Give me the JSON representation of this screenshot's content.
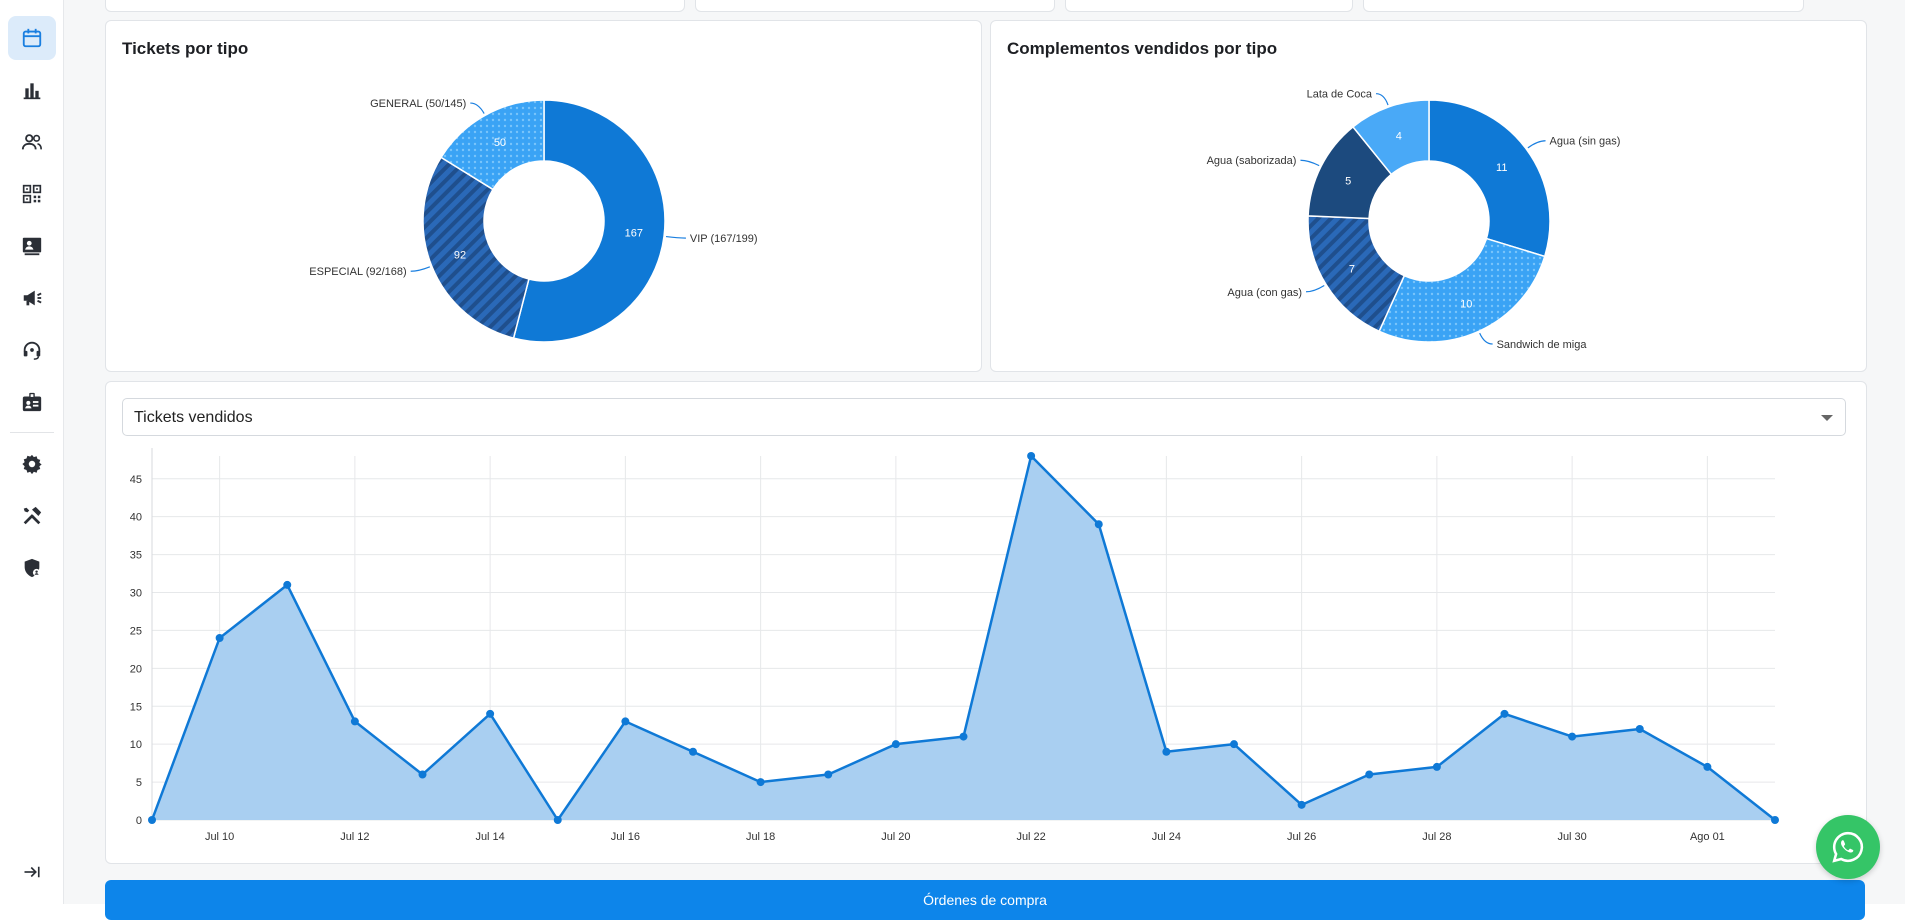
{
  "sidebar": {
    "items": [
      {
        "name": "calendar-icon",
        "active": true
      },
      {
        "name": "bar-chart-icon"
      },
      {
        "name": "users-icon"
      },
      {
        "name": "qr-code-icon"
      },
      {
        "name": "contact-card-icon"
      },
      {
        "name": "megaphone-icon"
      },
      {
        "name": "support-headset-icon"
      },
      {
        "name": "badge-icon"
      },
      {
        "name": "gear-icon"
      },
      {
        "name": "tools-icon"
      },
      {
        "name": "shield-user-icon"
      }
    ],
    "collapse_icon": "collapse-arrow-icon"
  },
  "tickets_card": {
    "title": "Tickets por tipo",
    "chart_data": {
      "type": "pie",
      "title": "Tickets por tipo",
      "slices": [
        {
          "label": "VIP (167/199)",
          "value": 167,
          "color": "#0f79d6",
          "pattern": "solid"
        },
        {
          "label": "ESPECIAL (92/168)",
          "value": 92,
          "color": "#2a69b8",
          "pattern": "stripes"
        },
        {
          "label": "GENERAL (50/145)",
          "value": 50,
          "color": "#3aa3f5",
          "pattern": "dots"
        }
      ]
    }
  },
  "complements_card": {
    "title": "Complementos vendidos por tipo",
    "chart_data": {
      "type": "pie",
      "title": "Complementos vendidos por tipo",
      "slices": [
        {
          "label": "Agua (sin gas)",
          "value": 11,
          "color": "#0f79d6",
          "pattern": "solid"
        },
        {
          "label": "Sandwich de miga",
          "value": 10,
          "color": "#3aa3f5",
          "pattern": "dots"
        },
        {
          "label": "Agua (con gas)",
          "value": 7,
          "color": "#2a69b8",
          "pattern": "stripes"
        },
        {
          "label": "Agua (saborizada)",
          "value": 5,
          "color": "#1c4a7e",
          "pattern": "solid"
        },
        {
          "label": "Lata de Coca",
          "value": 4,
          "color": "#49a9f7",
          "pattern": "solid"
        }
      ]
    }
  },
  "sales_card": {
    "select_value": "Tickets vendidos",
    "chart_data": {
      "type": "area",
      "title": "Tickets vendidos",
      "x": [
        "Jul 09",
        "Jul 10",
        "Jul 11",
        "Jul 12",
        "Jul 13",
        "Jul 14",
        "Jul 15",
        "Jul 16",
        "Jul 17",
        "Jul 18",
        "Jul 19",
        "Jul 20",
        "Jul 21",
        "Jul 22",
        "Jul 23",
        "Jul 24",
        "Jul 25",
        "Jul 26",
        "Jul 27",
        "Jul 28",
        "Jul 29",
        "Jul 30",
        "Jul 31",
        "Ago 01",
        "Ago 02"
      ],
      "values": [
        0,
        24,
        31,
        13,
        6,
        14,
        0,
        13,
        9,
        5,
        6,
        10,
        11,
        48,
        39,
        9,
        10,
        2,
        6,
        7,
        14,
        11,
        12,
        7,
        0
      ],
      "x_tick_labels": [
        "Jul 10",
        "Jul 12",
        "Jul 14",
        "Jul 16",
        "Jul 18",
        "Jul 20",
        "Jul 22",
        "Jul 24",
        "Jul 26",
        "Jul 28",
        "Jul 30",
        "Ago 01"
      ],
      "y_ticks": [
        0,
        5,
        10,
        15,
        20,
        25,
        30,
        35,
        40,
        45
      ],
      "ylim": [
        0,
        48
      ],
      "grid": true,
      "color": "#0f79d6"
    }
  },
  "orders_button": {
    "label": "Órdenes de compra"
  },
  "whatsapp": {
    "icon": "whatsapp-icon"
  }
}
